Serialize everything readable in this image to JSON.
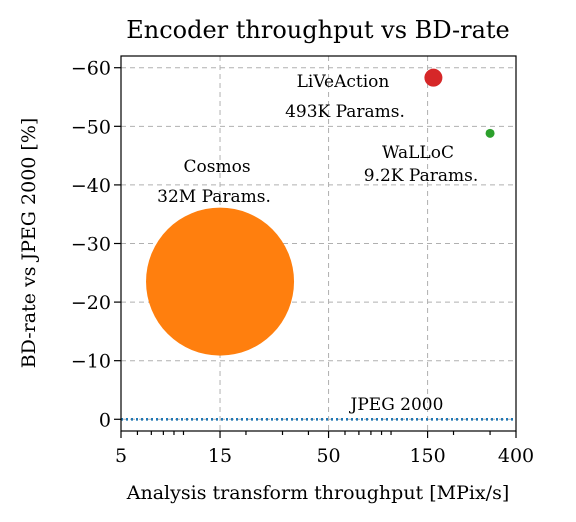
{
  "chart_data": {
    "type": "scatter",
    "title": "Encoder throughput vs BD-rate",
    "xlabel": "Analysis transform throughput [MPix/s]",
    "ylabel": "BD-rate vs JPEG 2000 [%]",
    "xscale": "log",
    "xlim": [
      5,
      400
    ],
    "ylim": [
      2,
      -62
    ],
    "y_inverted": true,
    "xticks": [
      5,
      15,
      50,
      150,
      400
    ],
    "xtick_labels": [
      "5",
      "15",
      "50",
      "150",
      "400"
    ],
    "yticks": [
      0,
      -10,
      -20,
      -30,
      -40,
      -50,
      -60
    ],
    "ytick_labels": [
      "0",
      "−10",
      "−20",
      "−30",
      "−40",
      "−50",
      "−60"
    ],
    "grid": true,
    "points": [
      {
        "name": "Cosmos",
        "params": "32M Params.",
        "x": 15,
        "y": -23.5,
        "size": "large",
        "color": "#ff7f0e"
      },
      {
        "name": "LiVeAction",
        "params": "493K Params.",
        "x": 160,
        "y": -58.3,
        "size": "medium",
        "color": "#d62728"
      },
      {
        "name": "WaLLoC",
        "params": "9.2K Params.",
        "x": 300,
        "y": -48.8,
        "size": "small",
        "color": "#2ca02c"
      }
    ],
    "reference_line": {
      "name": "JPEG 2000",
      "y": 0,
      "color": "#1f77b4",
      "style": "dotted"
    }
  }
}
